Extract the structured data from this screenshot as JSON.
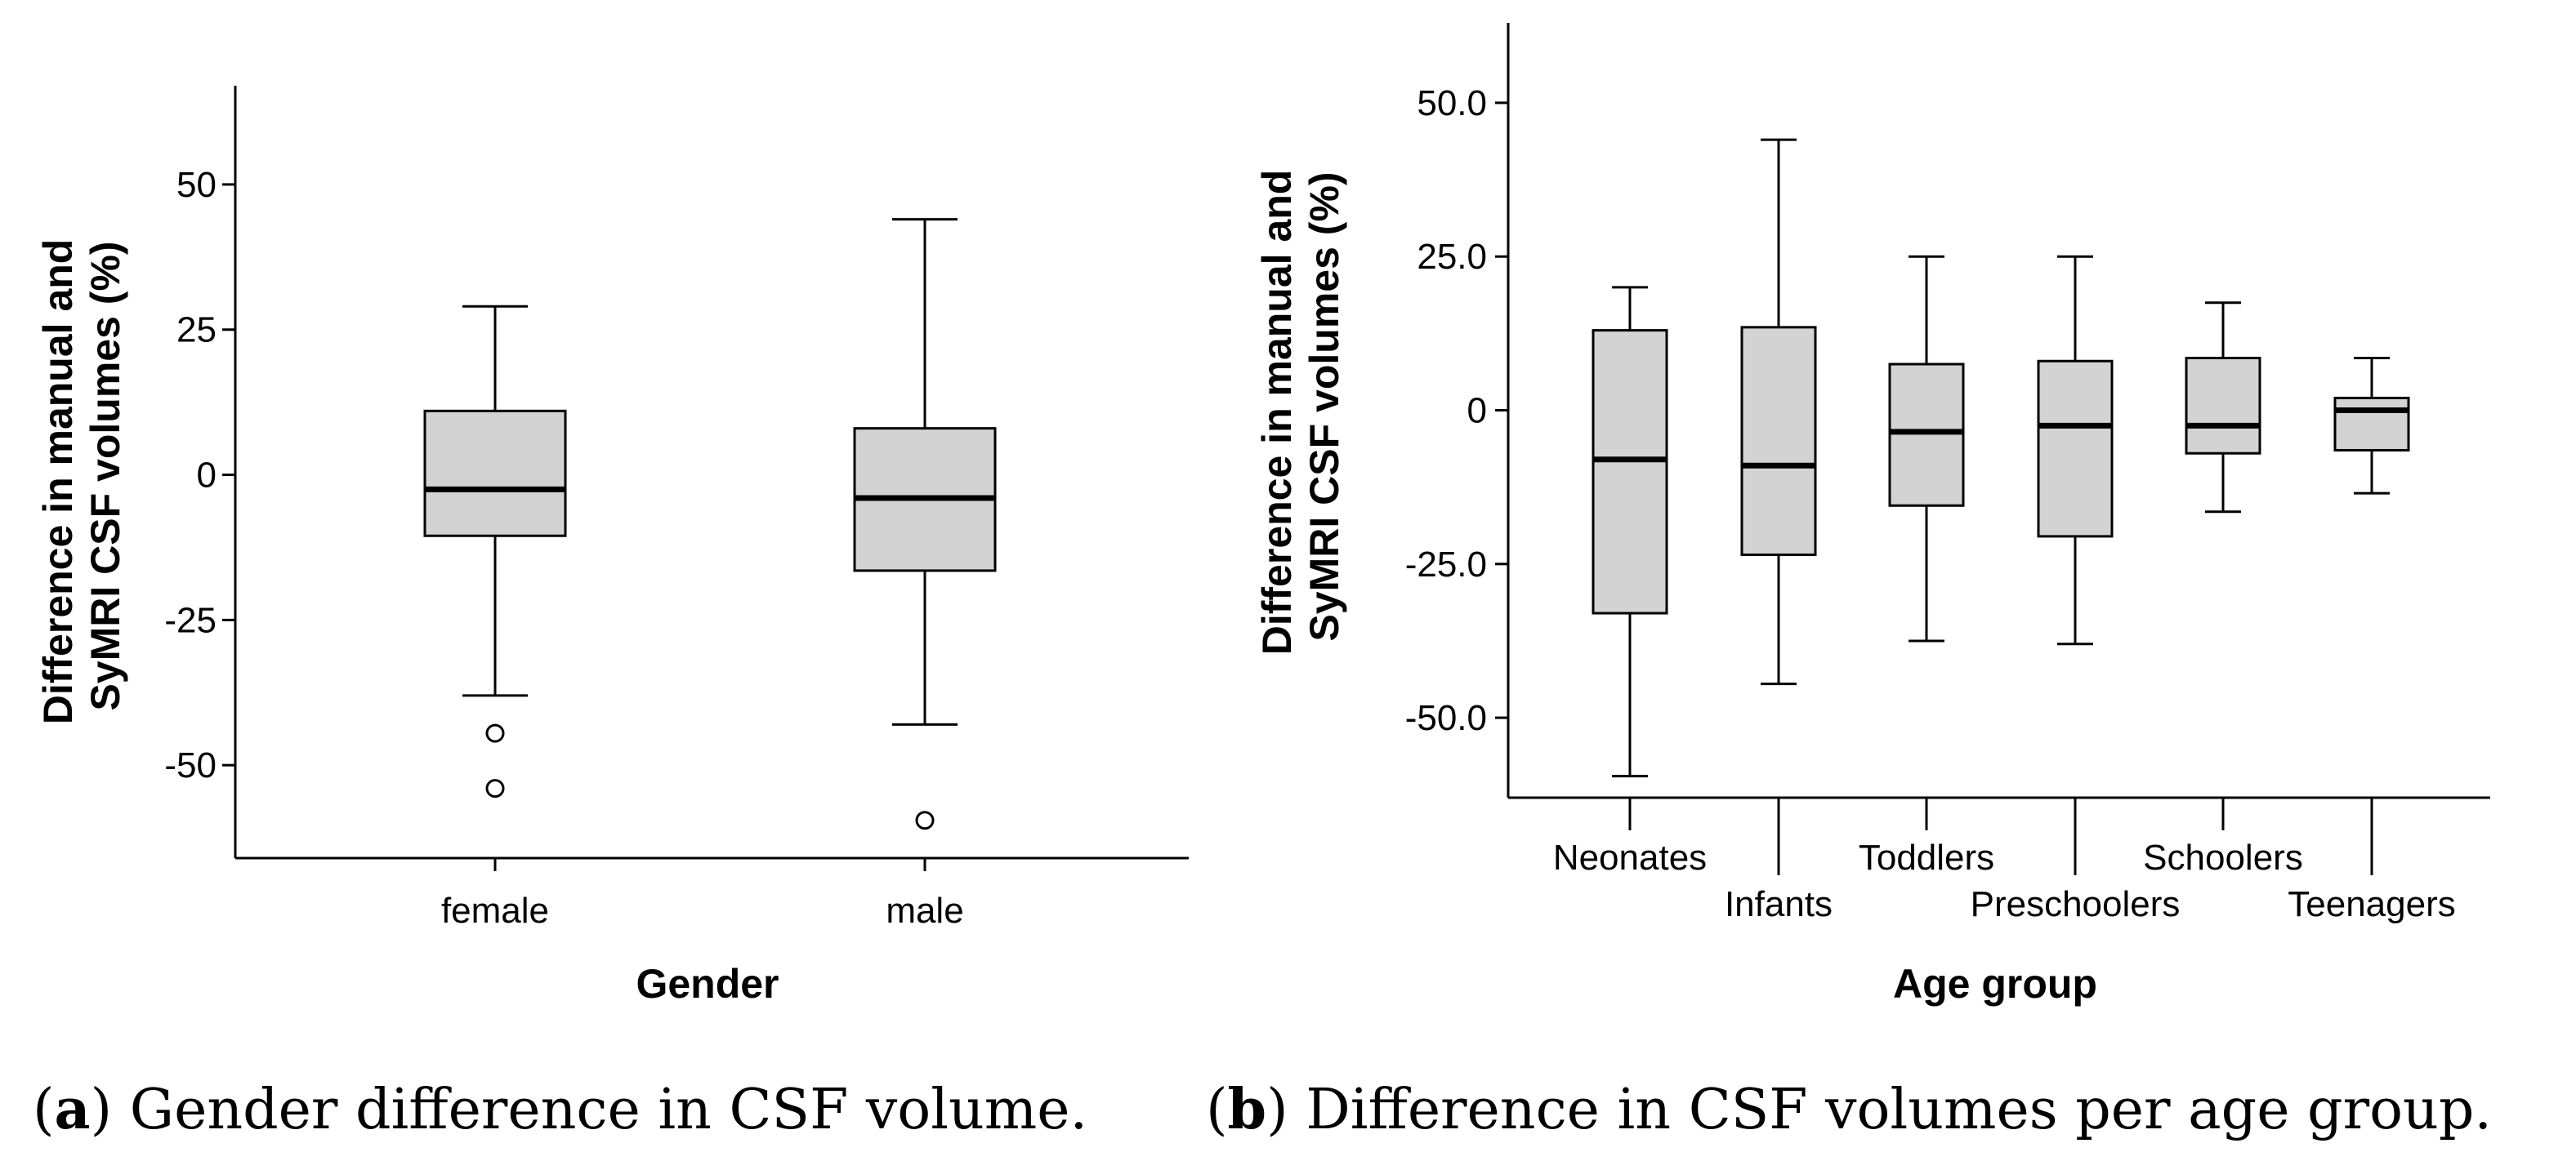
{
  "chart_data": [
    {
      "type": "box",
      "panel_label": "a",
      "caption": "Gender difference in CSF volume.",
      "xlabel": "Gender",
      "ylabel_lines": [
        "Difference in manual and",
        "SyMRI CSF volumes (%)"
      ],
      "ylim": [
        -66,
        67
      ],
      "yticks": [
        "50",
        "25",
        "0",
        "-25",
        "-50"
      ],
      "ytick_values": [
        50,
        25,
        0,
        -25,
        -50
      ],
      "categories": [
        "female",
        "male"
      ],
      "boxes": [
        {
          "whisker_low": -38,
          "q1": -10.5,
          "median": -2.5,
          "q3": 11,
          "whisker_high": 29,
          "outliers": [
            -44.5,
            -54
          ]
        },
        {
          "whisker_low": -43,
          "q1": -16.5,
          "median": -4,
          "q3": 8,
          "whisker_high": 44,
          "outliers": [
            -59.5
          ]
        }
      ]
    },
    {
      "type": "box",
      "panel_label": "b",
      "caption": "Difference in CSF volumes per age group.",
      "xlabel": "Age group",
      "ylabel_lines": [
        "Difference in manual and",
        "SyMRI CSF volumes (%)"
      ],
      "ylim": [
        -63,
        63
      ],
      "yticks": [
        "50.0",
        "25.0",
        "0",
        "-25.0",
        "-50.0"
      ],
      "ytick_values": [
        50,
        25,
        0,
        -25,
        -50
      ],
      "categories": [
        "Neonates",
        "Infants",
        "Toddlers",
        "Preschoolers",
        "Schoolers",
        "Teenagers"
      ],
      "boxes": [
        {
          "whisker_low": -59.5,
          "q1": -33,
          "median": -8,
          "q3": 13,
          "whisker_high": 20,
          "outliers": []
        },
        {
          "whisker_low": -44.5,
          "q1": -23.5,
          "median": -9,
          "q3": 13.5,
          "whisker_high": 44,
          "outliers": []
        },
        {
          "whisker_low": -37.5,
          "q1": -15.5,
          "median": -3.5,
          "q3": 7.5,
          "whisker_high": 25,
          "outliers": []
        },
        {
          "whisker_low": -38,
          "q1": -20.5,
          "median": -2.5,
          "q3": 8,
          "whisker_high": 25,
          "outliers": []
        },
        {
          "whisker_low": -16.5,
          "q1": -7,
          "median": -2.5,
          "q3": 8.5,
          "whisker_high": 17.5,
          "outliers": []
        },
        {
          "whisker_low": -13.5,
          "q1": -6.5,
          "median": 0,
          "q3": 2,
          "whisker_high": 8.5,
          "outliers": []
        }
      ]
    }
  ]
}
